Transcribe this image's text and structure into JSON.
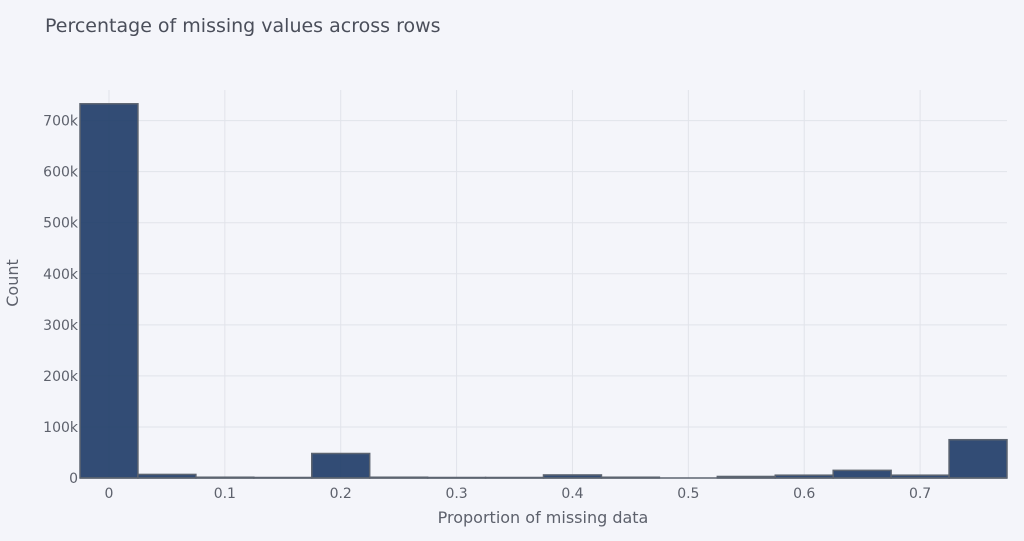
{
  "chart_data": {
    "type": "bar",
    "title": "Percentage of missing values across rows",
    "xlabel": "Proportion of missing data",
    "ylabel": "Count",
    "xlim": [
      -0.025,
      0.775
    ],
    "ylim": [
      0,
      760000
    ],
    "x_ticks": [
      0,
      0.1,
      0.2,
      0.3,
      0.4,
      0.5,
      0.6,
      0.7
    ],
    "x_tick_labels": [
      "0",
      "0.1",
      "0.2",
      "0.3",
      "0.4",
      "0.5",
      "0.6",
      "0.7"
    ],
    "y_ticks": [
      0,
      100000,
      200000,
      300000,
      400000,
      500000,
      600000,
      700000
    ],
    "y_tick_labels": [
      "0",
      "100k",
      "200k",
      "300k",
      "400k",
      "500k",
      "600k",
      "700k"
    ],
    "bin_width": 0.05,
    "bin_centers": [
      0,
      0.05,
      0.1,
      0.15,
      0.2,
      0.25,
      0.3,
      0.35,
      0.4,
      0.45,
      0.5,
      0.55,
      0.6,
      0.65,
      0.7,
      0.75
    ],
    "values": [
      733000,
      7000,
      1500,
      1000,
      48000,
      1500,
      1000,
      1000,
      6000,
      1500,
      0,
      3000,
      5500,
      15000,
      5500,
      75000
    ],
    "grid": true,
    "bar_color": "#1d3a66"
  }
}
